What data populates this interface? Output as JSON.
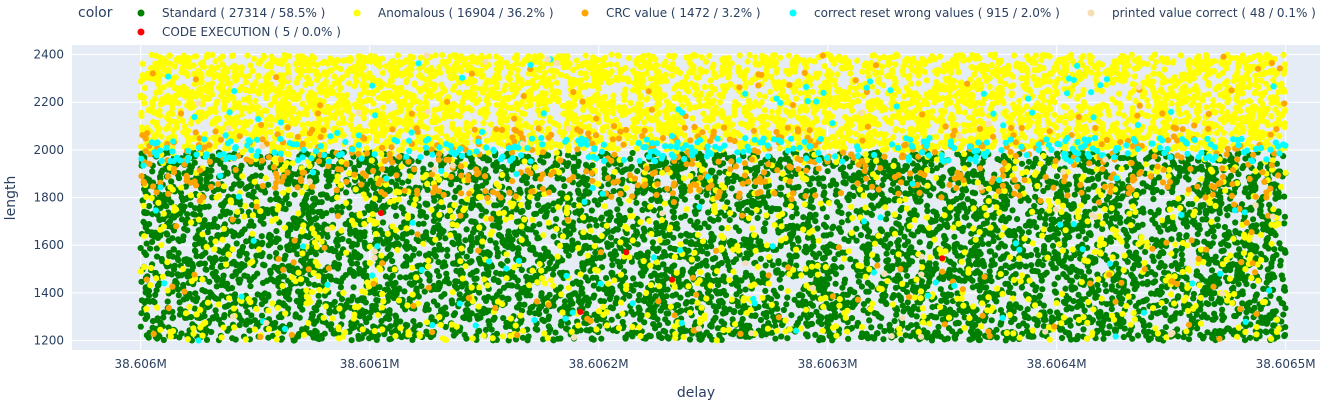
{
  "chart_data": {
    "type": "scatter",
    "xlabel": "delay",
    "ylabel": "length",
    "xlim": [
      38605970,
      38606515
    ],
    "ylim": [
      1160,
      2440
    ],
    "x_ticks": [
      {
        "value": 38606000,
        "label": "38.606M"
      },
      {
        "value": 38606100,
        "label": "38.6061M"
      },
      {
        "value": 38606200,
        "label": "38.6062M"
      },
      {
        "value": 38606300,
        "label": "38.6063M"
      },
      {
        "value": 38606400,
        "label": "38.6064M"
      },
      {
        "value": 38606500,
        "label": "38.6065M"
      }
    ],
    "y_ticks": [
      {
        "value": 1200,
        "label": "1200"
      },
      {
        "value": 1400,
        "label": "1400"
      },
      {
        "value": 1600,
        "label": "1600"
      },
      {
        "value": 1800,
        "label": "1800"
      },
      {
        "value": 2000,
        "label": "2000"
      },
      {
        "value": 2200,
        "label": "2200"
      },
      {
        "value": 2400,
        "label": "2400"
      }
    ],
    "grid": true,
    "legend": {
      "title": "color",
      "placement": "top",
      "entries": [
        {
          "label": "Standard ( 27314 / 58.5% )",
          "color": "#008000"
        },
        {
          "label": "Anomalous ( 16904 / 36.2% )",
          "color": "#ffff00"
        },
        {
          "label": "CRC value ( 1472 / 3.2% )",
          "color": "#ffa500"
        },
        {
          "label": "correct reset wrong values ( 915 / 2.0% )",
          "color": "#00ffff"
        },
        {
          "label": "printed value correct ( 48 / 0.1% )",
          "color": "#f5deb3"
        },
        {
          "label": "CODE EXECUTION ( 5 / 0.0% )",
          "color": "#ff0000"
        }
      ]
    },
    "series": [
      {
        "name": "Standard ( 27314 / 58.5% )",
        "color": "#008000",
        "count": 27314,
        "x_range": [
          38606000,
          38606500
        ],
        "y_range": [
          1200,
          1990
        ]
      },
      {
        "name": "Anomalous ( 16904 / 36.2% )",
        "color": "#ffff00",
        "count": 16904,
        "x_range": [
          38606000,
          38606500
        ],
        "y_range": [
          1200,
          2400
        ],
        "dense_y_range": [
          2000,
          2400
        ]
      },
      {
        "name": "CRC value ( 1472 / 3.2% )",
        "color": "#ffa500",
        "count": 1472,
        "x_range": [
          38606000,
          38606500
        ],
        "y_range": [
          1200,
          2400
        ],
        "dense_y_range": [
          1800,
          2100
        ]
      },
      {
        "name": "correct reset wrong values ( 915 / 2.0% )",
        "color": "#00ffff",
        "count": 915,
        "x_range": [
          38606000,
          38606500
        ],
        "y_range": [
          1200,
          2400
        ],
        "dense_y_range": [
          1950,
          2050
        ]
      },
      {
        "name": "printed value correct ( 48 / 0.1% )",
        "color": "#f5deb3",
        "count": 48,
        "x_range": [
          38606000,
          38606500
        ],
        "y_range": [
          1200,
          2400
        ]
      },
      {
        "name": "CODE EXECUTION ( 5 / 0.0% )",
        "color": "#ff0000",
        "count": 5,
        "points": [
          {
            "x": 38606105,
            "y": 1735
          },
          {
            "x": 38606212,
            "y": 1570
          },
          {
            "x": 38606192,
            "y": 1320
          },
          {
            "x": 38606232,
            "y": 1455
          },
          {
            "x": 38606350,
            "y": 1545
          }
        ]
      }
    ]
  }
}
